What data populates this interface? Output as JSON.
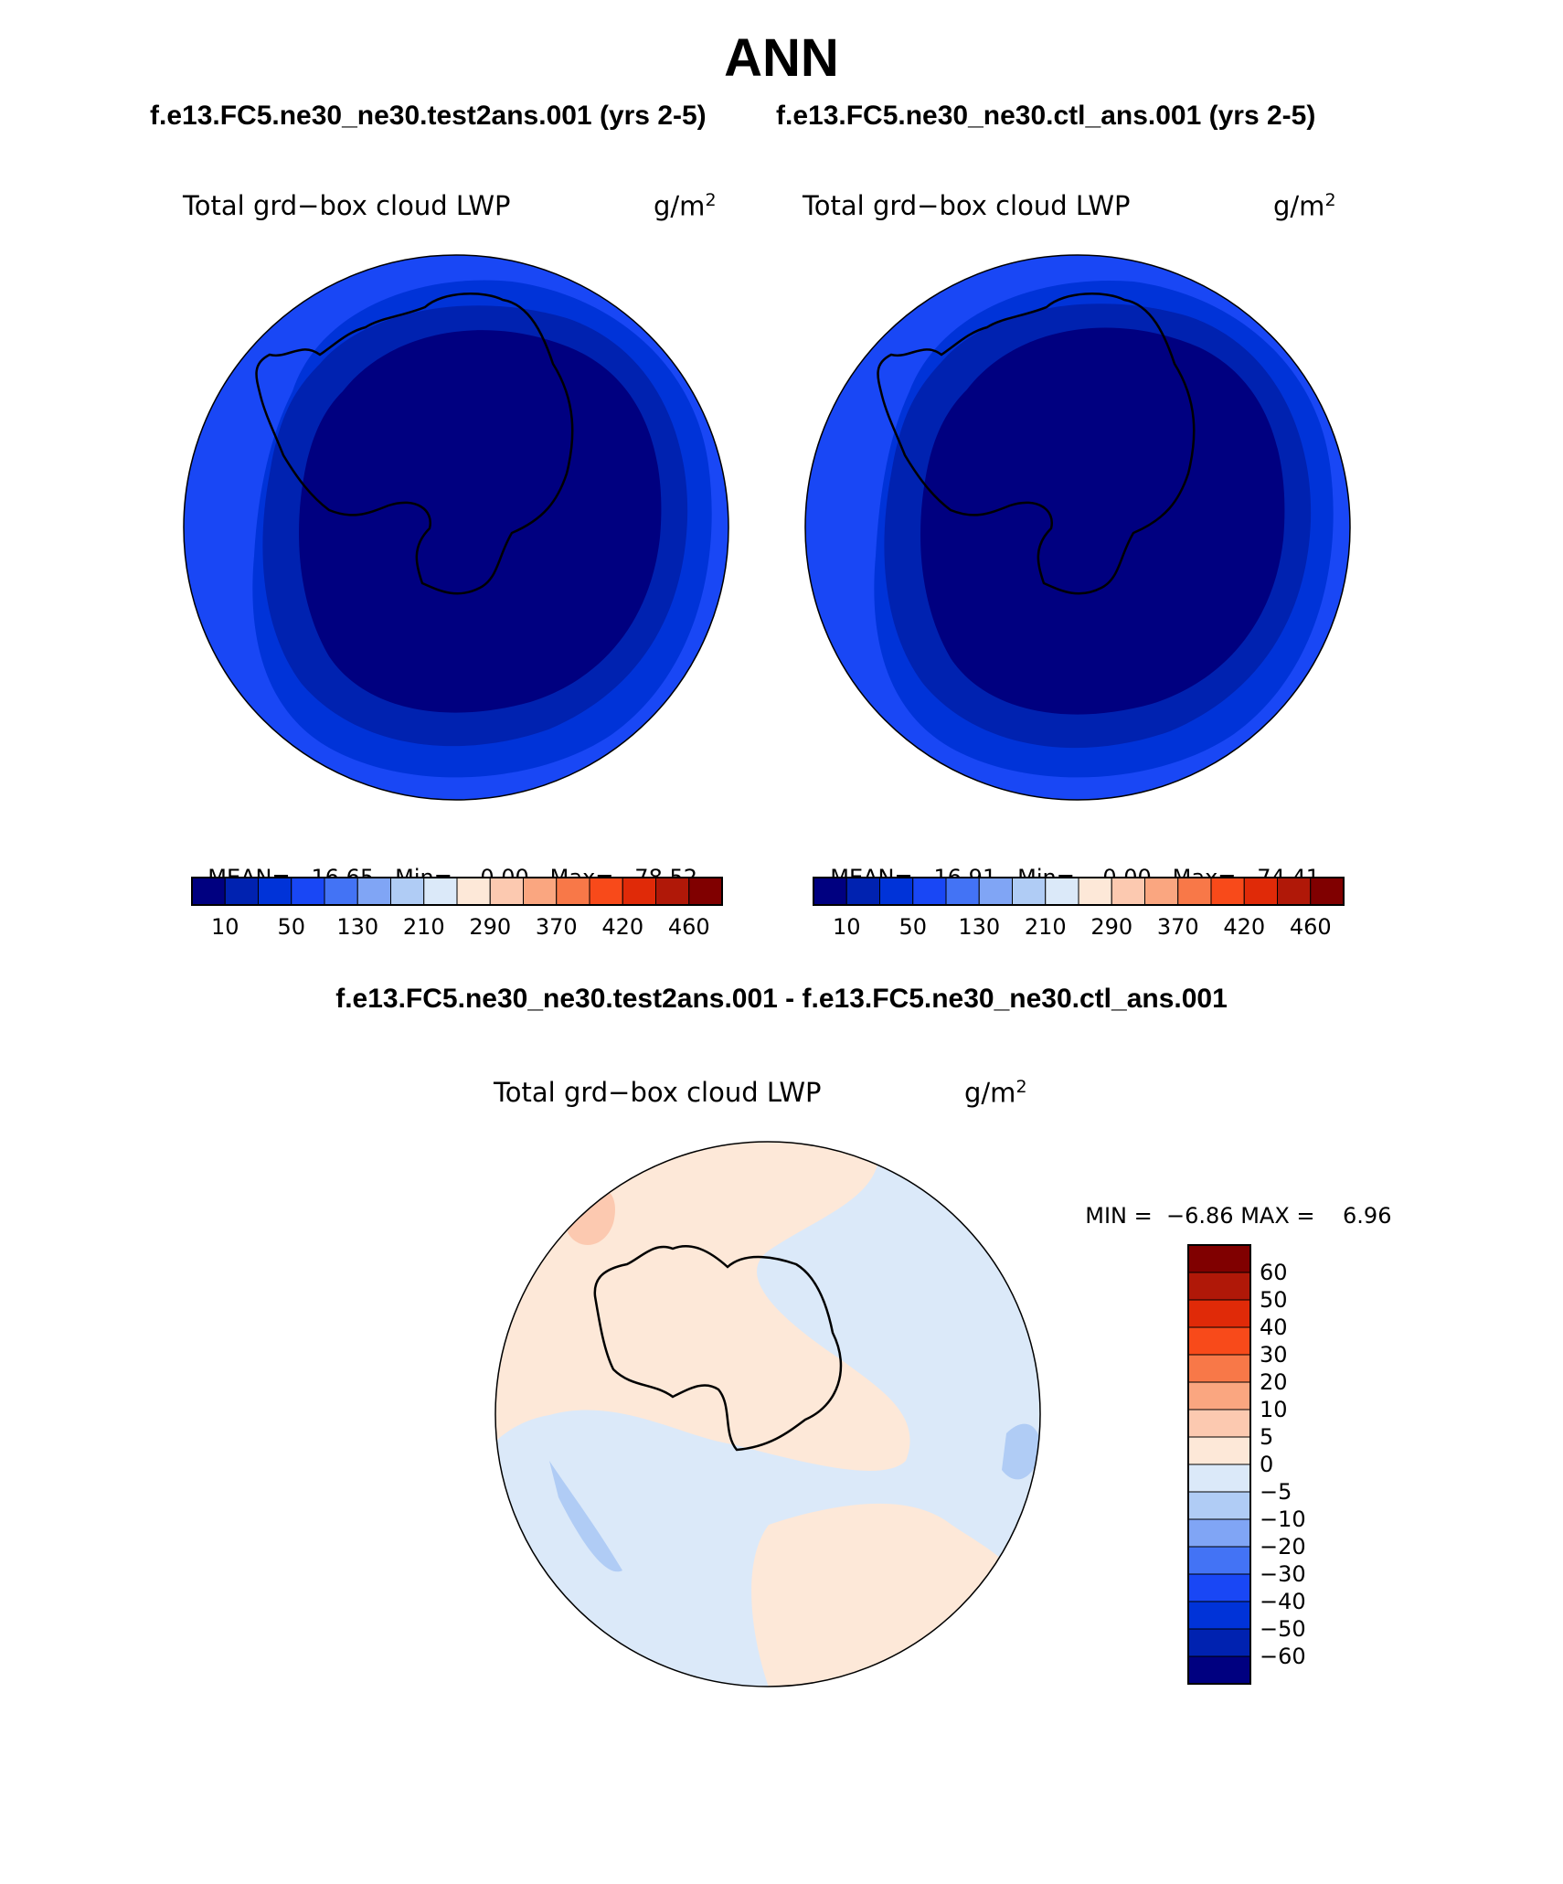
{
  "page": {
    "season": "ANN",
    "case_header_left": "f.e13.FC5.ne30_ne30.test2ans.001 (yrs 2-5)",
    "case_header_right": "f.e13.FC5.ne30_ne30.ctl_ans.001 (yrs 2-5)",
    "diff_header": "f.e13.FC5.ne30_ne30.test2ans.001 - f.e13.FC5.ne30_ne30.ctl_ans.001"
  },
  "panels": [
    {
      "variable": "Total grd−box cloud LWP",
      "units_base": "g/m",
      "units_exp": "2",
      "mean_label": "MEAN=",
      "mean": "16.65",
      "min_label": "Min=",
      "min": "0.00",
      "max_label": "Max=",
      "max": "78.52"
    },
    {
      "variable": "Total grd−box cloud LWP",
      "units_base": "g/m",
      "units_exp": "2",
      "mean_label": "MEAN=",
      "mean": "16.91",
      "min_label": "Min=",
      "min": "0.00",
      "max_label": "Max=",
      "max": "74.41"
    }
  ],
  "diff_panel": {
    "variable": "Total grd−box cloud LWP",
    "units_base": "g/m",
    "units_exp": "2",
    "min_label": "MIN =",
    "min": "−6.86",
    "max_label": "MAX =",
    "max": "6.96"
  },
  "colorbar_main": {
    "colors": [
      "#000080",
      "#0022B0",
      "#0033D8",
      "#1947F5",
      "#4373F5",
      "#80A5F5",
      "#B0CCF5",
      "#DBE9F9",
      "#FDE8D8",
      "#FCC9B0",
      "#FAA680",
      "#F87848",
      "#F84A1A",
      "#E02A08",
      "#B01808",
      "#800000"
    ],
    "tick_labels": [
      "10",
      "50",
      "130",
      "210",
      "290",
      "370",
      "420",
      "460"
    ]
  },
  "colorbar_diff": {
    "colors": [
      "#800000",
      "#B01808",
      "#E02A08",
      "#F84A1A",
      "#F87848",
      "#FAA680",
      "#FCC9B0",
      "#FDE8D8",
      "#DBE9F9",
      "#B0CCF5",
      "#80A5F5",
      "#4373F5",
      "#1947F5",
      "#0033D8",
      "#0022B0",
      "#000080"
    ],
    "tick_labels": [
      "60",
      "50",
      "40",
      "30",
      "20",
      "10",
      "5",
      "0",
      "−5",
      "−10",
      "−20",
      "−30",
      "−40",
      "−50",
      "−60"
    ]
  },
  "map_colors": {
    "ocean_outer": "#1947F5",
    "ocean_mid": "#0033D8",
    "ocean_inner": "#0022B0",
    "interior": "#000080",
    "diff_pos": "#FDE8D8",
    "diff_pos2": "#FCC9B0",
    "diff_neg": "#DBE9F9",
    "diff_neg2": "#B0CCF5"
  }
}
